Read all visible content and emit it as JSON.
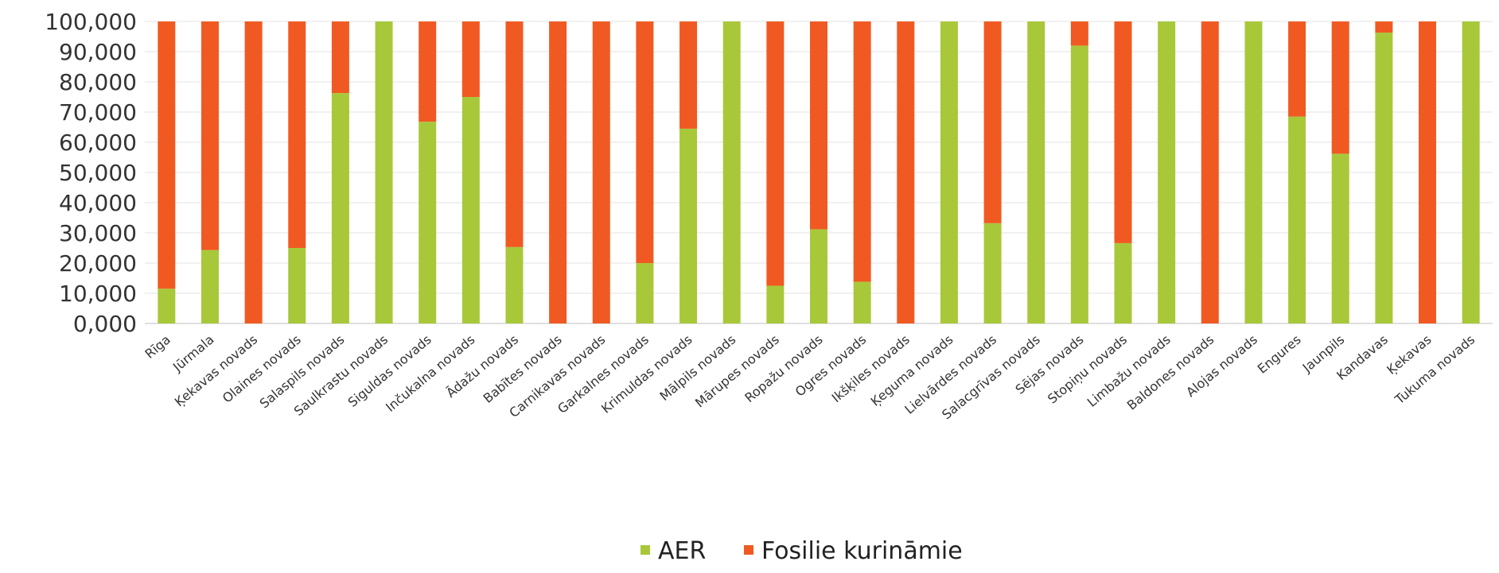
{
  "chart_data": {
    "type": "bar",
    "stacked": true,
    "categories": [
      "Rīga",
      "Jūrmala",
      "Ķekavas novads",
      "Olaines novads",
      "Salaspils novads",
      "Saulkrastu novads",
      "Siguldas novads",
      "Inčukalna novads",
      "Ādažu novads",
      "Babītes novads",
      "Carnikavas novads",
      "Garkalnes novads",
      "Krimuldas novads",
      "Mālpils novads",
      "Mārupes novads",
      "Ropažu novads",
      "Ogres novads",
      "Ikšķiles novads",
      "Ķeguma novads",
      "Lielvārdes novads",
      "Salacgrīvas novads",
      "Sējas novads",
      "Stopiņu novads",
      "Limbažu novads",
      "Baldones novads",
      "Alojas novads",
      "Engures",
      "Jaunpils",
      "Kandavas",
      "Ķekavas",
      "Tukuma novads"
    ],
    "series": [
      {
        "name": "AER",
        "color": "#a8c83a",
        "values": [
          11.5,
          24.3,
          0,
          25,
          76.3,
          100,
          66.8,
          75,
          25.3,
          0,
          0,
          20,
          64.5,
          100,
          12.5,
          31.2,
          13.8,
          0,
          100,
          33.2,
          100,
          92,
          26.6,
          100,
          0,
          100,
          68.5,
          56.2,
          96.3,
          0,
          100
        ]
      },
      {
        "name": "Fosilie kurināmie",
        "color": "#f05a22",
        "values": [
          88.5,
          75.7,
          100,
          75,
          23.7,
          0,
          33.2,
          25,
          74.7,
          100,
          100,
          80,
          35.5,
          0,
          87.5,
          68.8,
          86.2,
          100,
          0,
          66.8,
          0,
          8,
          73.4,
          0,
          100,
          0,
          31.5,
          43.8,
          3.7,
          100,
          0
        ]
      }
    ],
    "ylim": [
      0,
      100
    ],
    "yticks": [
      "0,000",
      "10,000",
      "20,000",
      "30,000",
      "40,000",
      "50,000",
      "60,000",
      "70,000",
      "80,000",
      "90,000",
      "100,000"
    ],
    "grid": true,
    "legend_position": "bottom"
  }
}
